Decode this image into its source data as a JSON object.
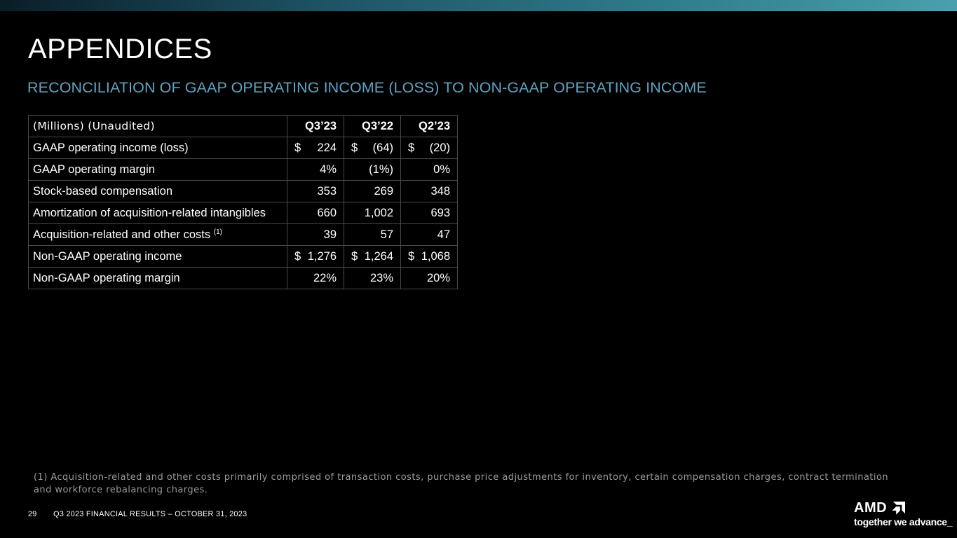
{
  "slide": {
    "title": "APPENDICES",
    "subtitle": "RECONCILIATION OF GAAP OPERATING INCOME (LOSS) TO NON-GAAP OPERATING INCOME",
    "page_number": "29",
    "footer": "Q3 2023 FINANCIAL RESULTS – OCTOBER 31, 2023",
    "footnote": "(1) Acquisition-related and other costs primarily comprised of transaction costs, purchase price adjustments for inventory, certain compensation charges, contract termination and workforce rebalancing charges."
  },
  "table": {
    "header": {
      "label": "(Millions) (Unaudited)",
      "cols": [
        "Q3’23",
        "Q3’22",
        "Q2’23"
      ]
    },
    "currency_symbol": "$",
    "rows": [
      {
        "label": "GAAP operating income (loss)",
        "values": [
          "224",
          "(64)",
          "(20)"
        ]
      },
      {
        "label": "GAAP operating margin",
        "values": [
          "4%",
          "(1%)",
          "0%"
        ]
      },
      {
        "label": "Stock-based compensation",
        "values": [
          "353",
          "269",
          "348"
        ]
      },
      {
        "label": "Amortization of acquisition-related intangibles",
        "values": [
          "660",
          "1,002",
          "693"
        ]
      },
      {
        "label": "Acquisition-related and other costs",
        "footnote_ref": "(1)",
        "values": [
          "39",
          "57",
          "47"
        ]
      },
      {
        "label": "Non-GAAP operating income",
        "values": [
          "1,276",
          "1,264",
          "1,068"
        ]
      },
      {
        "label": "Non-GAAP operating margin",
        "values": [
          "22%",
          "23%",
          "20%"
        ]
      }
    ]
  },
  "logo": {
    "brand": "AMD",
    "tagline": "together we advance_",
    "icon": "amd-arrow-icon"
  },
  "colors": {
    "background": "#000000",
    "subtitle": "#5fa3c2",
    "footnote": "#9a9a9a",
    "border": "#4a4a4a"
  }
}
